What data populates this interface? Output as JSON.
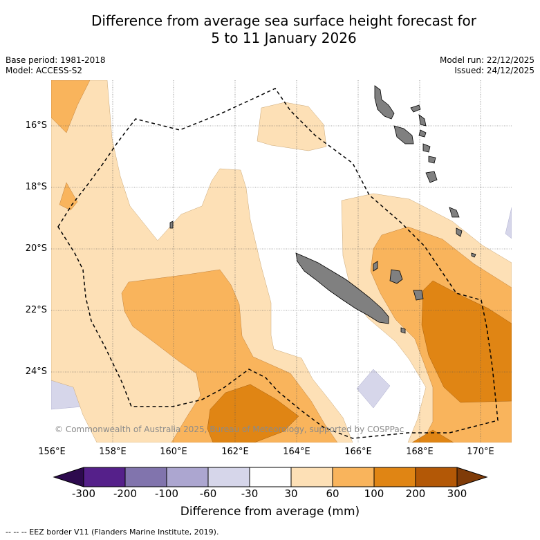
{
  "title_line1": "Difference from average sea surface height forecast for",
  "title_line2": "5 to 11 January 2026",
  "meta_left": {
    "base_period": "Base period: 1981-2018",
    "model": "Model: ACCESS-S2"
  },
  "meta_right": {
    "model_run": "Model run: 22/12/2025",
    "issued": "Issued: 24/12/2025"
  },
  "lon_labels": [
    "156°E",
    "158°E",
    "160°E",
    "162°E",
    "164°E",
    "166°E",
    "168°E",
    "170°E"
  ],
  "lat_labels": [
    "16°S",
    "18°S",
    "20°S",
    "22°S",
    "24°S"
  ],
  "copyright": "© Commonwealth of Australia 2025, Bureau of Meteorology, supported by COSPPac",
  "colorbar": {
    "ticks": [
      "-300",
      "-200",
      "-100",
      "-60",
      "-30",
      "30",
      "60",
      "100",
      "200",
      "300"
    ],
    "colors": [
      "#2d0a4e",
      "#55208a",
      "#8174ad",
      "#aca6d0",
      "#d6d6ea",
      "#ffffff",
      "#fde0b6",
      "#f9b45c",
      "#e08514",
      "#b35806",
      "#7f3b08"
    ],
    "title": "Difference from average (mm)"
  },
  "footer": "--  --  -- EEZ border V11 (Flanders Marine Institute, 2019).",
  "map_colors": {
    "land": "#808080",
    "c30_60": "#fde0b6",
    "c60_100": "#f9b45c",
    "c100_200": "#e08514",
    "c200_300": "#b35806",
    "neg30_60": "#d6d6ea"
  }
}
